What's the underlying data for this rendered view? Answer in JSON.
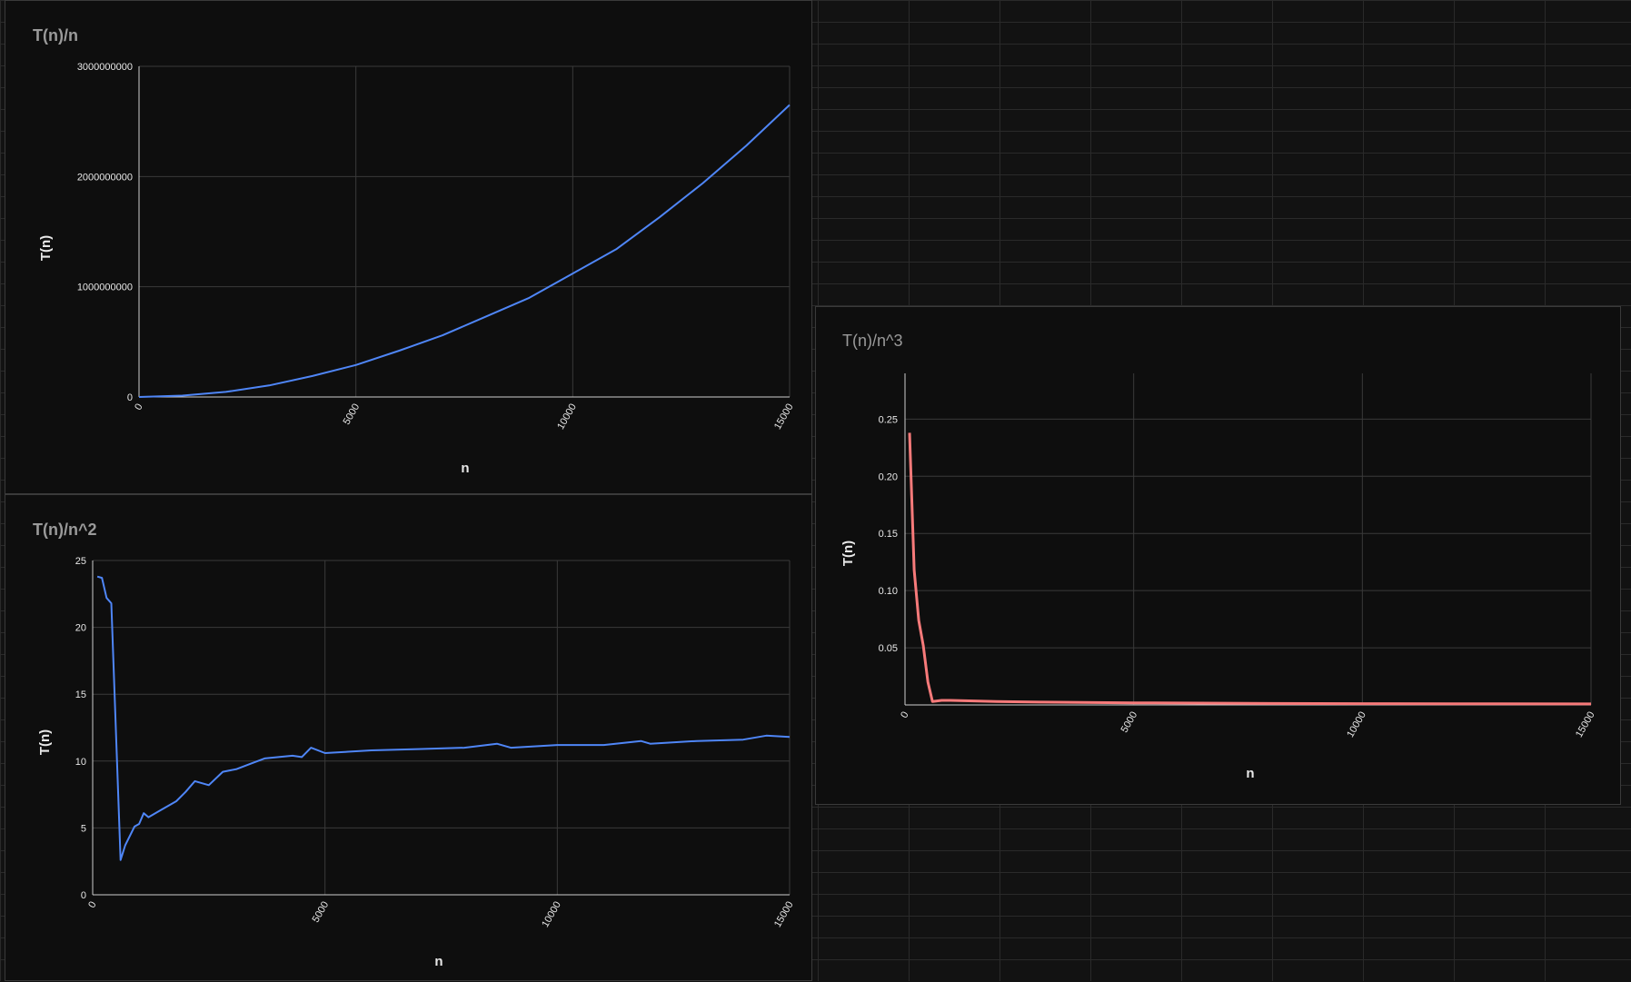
{
  "colors": {
    "background": "#0e0e0e",
    "grid": "#3a3a3a",
    "axis_text": "#e8e8e8",
    "title_text": "#9a9a9a",
    "blue_series": "#4f86f7",
    "red_series": "#f77a7a"
  },
  "chart_data": [
    {
      "type": "line",
      "title": "T(n)/n",
      "xlabel": "n",
      "ylabel": "T(n)",
      "xlim": [
        0,
        15000
      ],
      "ylim": [
        0,
        3000000000
      ],
      "x_ticks": [
        "0",
        "5000",
        "10000",
        "15000"
      ],
      "y_ticks": [
        "0",
        "1000000000",
        "2000000000",
        "3000000000"
      ],
      "grid": true,
      "legend": "none",
      "color": "#4f86f7",
      "x": [
        0,
        1000,
        2000,
        3000,
        4000,
        5000,
        6000,
        7000,
        8000,
        9000,
        10000,
        11000,
        12000,
        13000,
        14000,
        15000
      ],
      "values": [
        0,
        12000000,
        46000000,
        105000000,
        190000000,
        290000000,
        420000000,
        560000000,
        730000000,
        900000000,
        1120000000,
        1340000000,
        1630000000,
        1940000000,
        2280000000,
        2650000000
      ]
    },
    {
      "type": "line",
      "title": "T(n)/n^2",
      "xlabel": "n",
      "ylabel": "T(n)",
      "xlim": [
        0,
        15000
      ],
      "ylim": [
        0,
        25
      ],
      "x_ticks": [
        "0",
        "5000",
        "10000",
        "15000"
      ],
      "y_ticks": [
        "0",
        "5",
        "10",
        "15",
        "20",
        "25"
      ],
      "grid": true,
      "legend": "none",
      "color": "#4f86f7",
      "x": [
        100,
        200,
        300,
        400,
        600,
        700,
        900,
        1000,
        1100,
        1200,
        1500,
        1800,
        2000,
        2200,
        2500,
        2800,
        3100,
        3400,
        3700,
        4000,
        4300,
        4500,
        4700,
        5000,
        6000,
        7000,
        8000,
        8700,
        9000,
        10000,
        11000,
        11800,
        12000,
        13000,
        14000,
        14500,
        15000
      ],
      "values": [
        23.8,
        23.7,
        22.2,
        21.8,
        2.6,
        3.7,
        5.1,
        5.3,
        6.1,
        5.8,
        6.4,
        7.0,
        7.7,
        8.5,
        8.2,
        9.2,
        9.4,
        9.8,
        10.2,
        10.3,
        10.4,
        10.3,
        11.0,
        10.6,
        10.8,
        10.9,
        11.0,
        11.3,
        11.0,
        11.2,
        11.2,
        11.5,
        11.3,
        11.5,
        11.6,
        11.9,
        11.8
      ]
    },
    {
      "type": "line",
      "title": "T(n)/n^3",
      "xlabel": "n",
      "ylabel": "T(n)",
      "xlim": [
        0,
        15000
      ],
      "ylim": [
        0,
        0.29
      ],
      "x_ticks": [
        "0",
        "5000",
        "10000",
        "15000"
      ],
      "y_ticks": [
        "0.05",
        "0.10",
        "0.15",
        "0.20",
        "0.25"
      ],
      "grid": true,
      "legend": "none",
      "color": "#f77a7a",
      "x": [
        100,
        200,
        300,
        400,
        500,
        600,
        800,
        1000,
        2000,
        3000,
        5000,
        8000,
        10000,
        12000,
        15000
      ],
      "values": [
        0.238,
        0.118,
        0.074,
        0.052,
        0.02,
        0.003,
        0.004,
        0.004,
        0.003,
        0.0025,
        0.0018,
        0.0013,
        0.0011,
        0.001,
        0.0009
      ]
    }
  ]
}
